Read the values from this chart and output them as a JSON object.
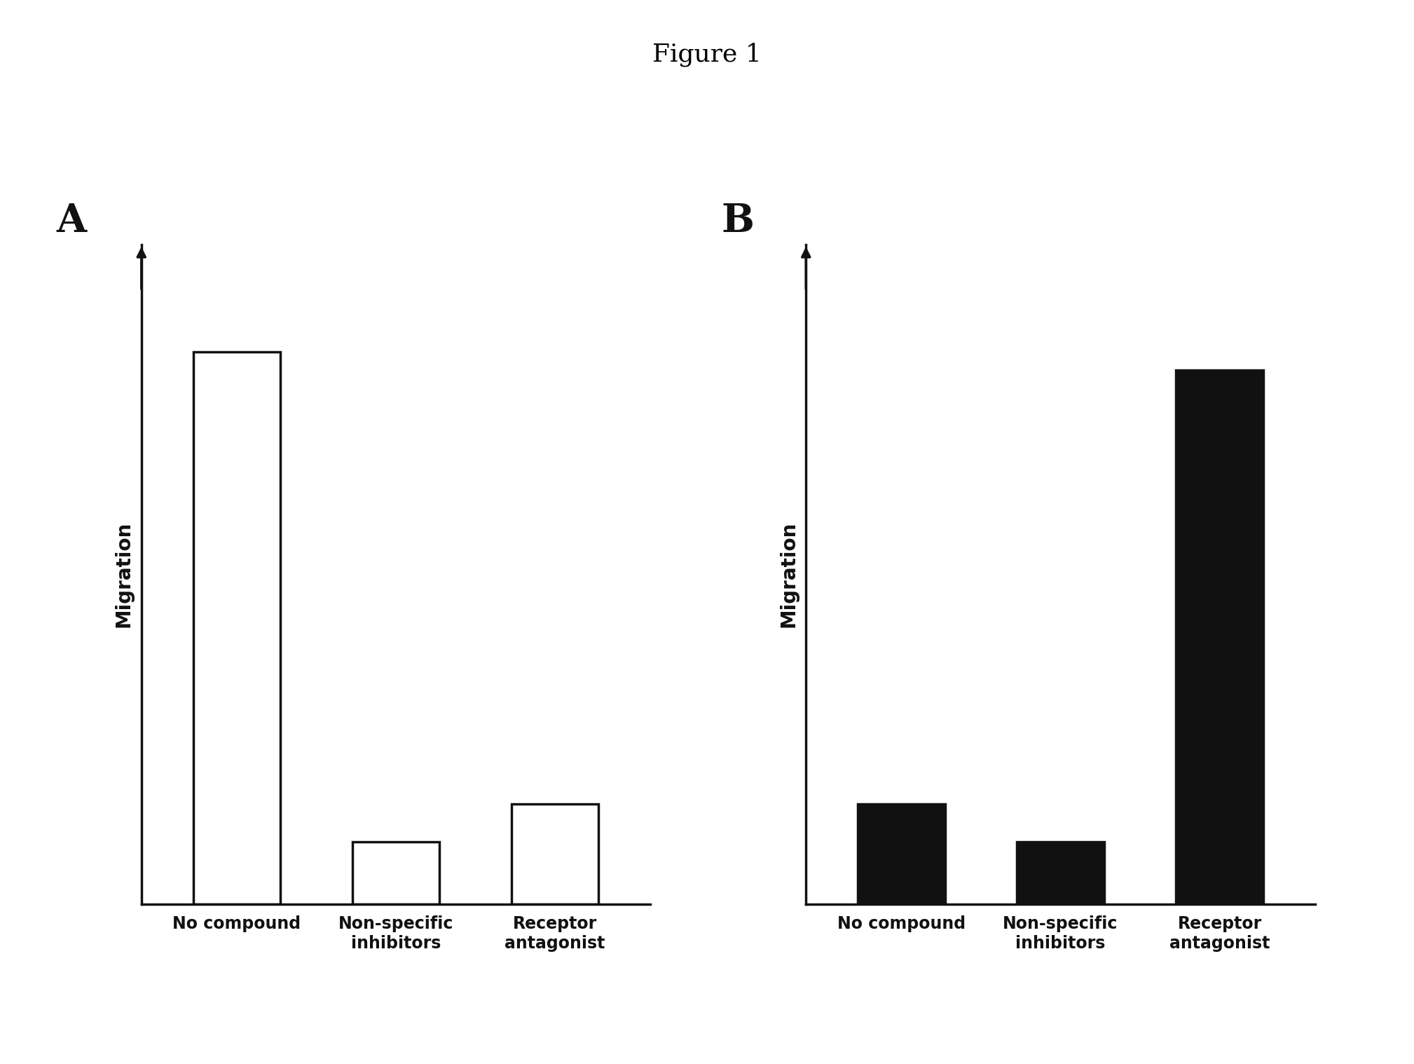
{
  "title": "Figure 1",
  "title_fontsize": 26,
  "panel_label_fontsize": 40,
  "axis_label_fontsize": 20,
  "tick_label_fontsize": 17,
  "background_color": "#ffffff",
  "panel_A": {
    "label": "A",
    "categories": [
      "No compound",
      "Non-specific\ninhibitors",
      "Receptor\nantagonist"
    ],
    "values": [
      0.88,
      0.1,
      0.16
    ],
    "bar_color": "#ffffff",
    "bar_edgecolor": "#111111",
    "ylabel": "Migration",
    "ylim": [
      0,
      1.05
    ]
  },
  "panel_B": {
    "label": "B",
    "categories": [
      "No compound",
      "Non-specific\ninhibitors",
      "Receptor\nantagonist"
    ],
    "values": [
      0.16,
      0.1,
      0.85
    ],
    "bar_color": "#111111",
    "bar_edgecolor": "#111111",
    "ylabel": "Migration",
    "ylim": [
      0,
      1.05
    ]
  }
}
